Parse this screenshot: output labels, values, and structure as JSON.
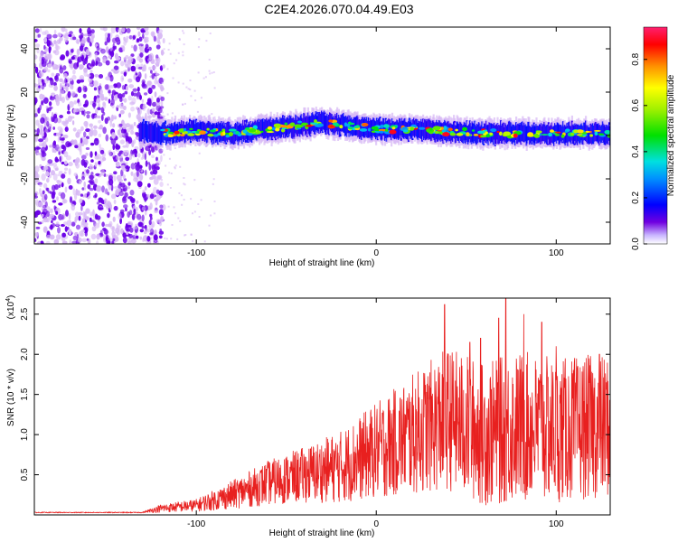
{
  "title": "C2E4.2026.070.04.49.E03",
  "colors": {
    "frame": "#000000",
    "snr_line": "#e8201f",
    "spec_dot": "#6a00e8",
    "spec_faint": "#d7b8f5"
  },
  "chart_data": [
    {
      "type": "heatmap",
      "name": "spectrogram",
      "title": "C2E4.2026.070.04.49.E03",
      "xlabel": "Height of straight line (km)",
      "ylabel": "Frequency (Hz)",
      "xlim": [
        -190,
        130
      ],
      "ylim": [
        -50,
        50
      ],
      "xticks": [
        -100,
        0,
        100
      ],
      "yticks": [
        -40,
        -20,
        0,
        20,
        40
      ],
      "noise_region_km": [
        -190,
        -120
      ],
      "band_center_hz": [
        [
          -130,
          2
        ],
        [
          -120,
          1
        ],
        [
          -100,
          2
        ],
        [
          -80,
          1
        ],
        [
          -60,
          3
        ],
        [
          -40,
          5
        ],
        [
          -30,
          6
        ],
        [
          -20,
          5
        ],
        [
          0,
          3
        ],
        [
          20,
          3
        ],
        [
          40,
          2
        ],
        [
          60,
          1
        ],
        [
          80,
          1
        ],
        [
          100,
          1
        ],
        [
          120,
          1
        ],
        [
          130,
          1
        ]
      ],
      "band_width_hz": 5,
      "colorbar": {
        "label": "Normalized spectral amplitude",
        "ticks": [
          0.0,
          0.2,
          0.4,
          0.6,
          0.8
        ],
        "range": [
          0.0,
          0.94
        ]
      }
    },
    {
      "type": "line",
      "name": "snr",
      "xlabel": "Height of straight line (km)",
      "ylabel": "SNR (10 * v/v)",
      "exponent_label": "(x10",
      "exponent_power": "4",
      "exponent_close": ")",
      "xlim": [
        -190,
        130
      ],
      "ylim": [
        0,
        2.7
      ],
      "xticks": [
        -100,
        0,
        100
      ],
      "yticks": [
        0.5,
        1.0,
        1.5,
        2.0,
        2.5
      ],
      "envelope": [
        [
          -190,
          0.03
        ],
        [
          -130,
          0.03
        ],
        [
          -120,
          0.08
        ],
        [
          -100,
          0.12
        ],
        [
          -80,
          0.25
        ],
        [
          -60,
          0.4
        ],
        [
          -40,
          0.5
        ],
        [
          -20,
          0.6
        ],
        [
          0,
          0.8
        ],
        [
          20,
          1.0
        ],
        [
          30,
          1.1
        ],
        [
          40,
          1.2
        ],
        [
          60,
          1.0
        ],
        [
          80,
          1.1
        ],
        [
          100,
          1.05
        ],
        [
          120,
          1.1
        ],
        [
          130,
          1.1
        ]
      ],
      "peaks": [
        [
          38,
          2.62
        ],
        [
          52,
          2.15
        ],
        [
          58,
          2.2
        ],
        [
          68,
          2.45
        ],
        [
          72,
          2.7
        ],
        [
          82,
          2.5
        ],
        [
          92,
          2.4
        ],
        [
          100,
          2.1
        ],
        [
          112,
          1.85
        ],
        [
          124,
          2.0
        ]
      ],
      "noise_amplitude": [
        [
          -190,
          0.005
        ],
        [
          -130,
          0.005
        ],
        [
          -120,
          0.05
        ],
        [
          -100,
          0.08
        ],
        [
          -80,
          0.18
        ],
        [
          -60,
          0.28
        ],
        [
          -40,
          0.35
        ],
        [
          -20,
          0.45
        ],
        [
          0,
          0.6
        ],
        [
          20,
          0.75
        ],
        [
          40,
          0.9
        ],
        [
          60,
          0.9
        ],
        [
          80,
          0.95
        ],
        [
          100,
          0.9
        ],
        [
          130,
          0.9
        ]
      ]
    }
  ]
}
